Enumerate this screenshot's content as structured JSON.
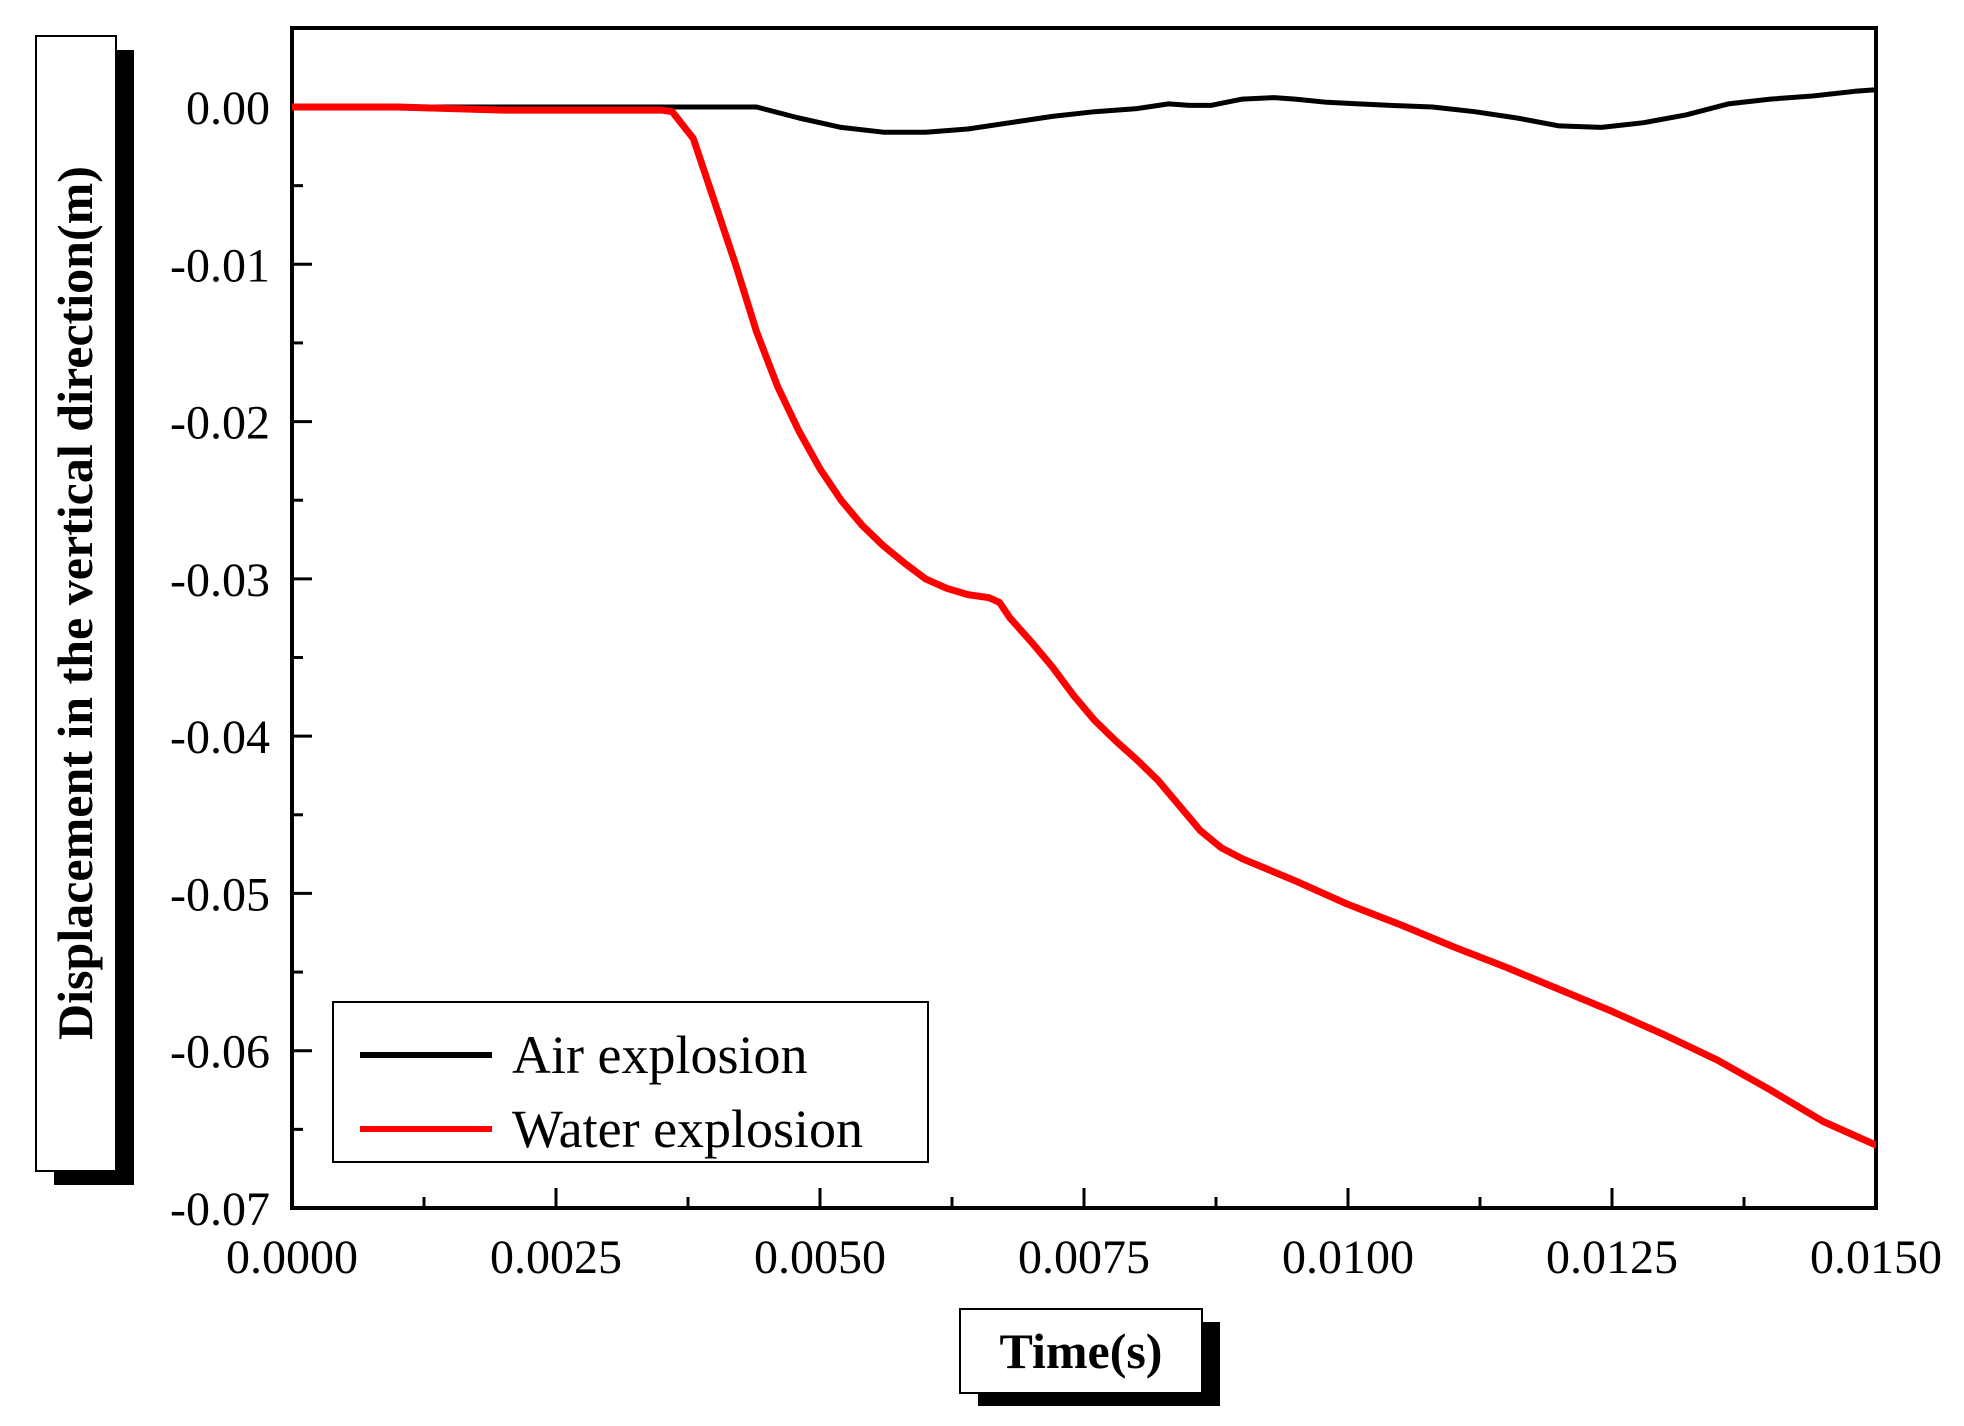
{
  "chart_data": {
    "type": "line",
    "title": "",
    "xlabel": "Time(s)",
    "ylabel": "Displacement in the vertical direction(m)",
    "xlim": [
      0.0,
      0.015
    ],
    "ylim": [
      -0.07,
      0.005
    ],
    "x_ticks": [
      0.0,
      0.0025,
      0.005,
      0.0075,
      0.01,
      0.0125,
      0.015
    ],
    "x_tick_labels": [
      "0.0000",
      "0.0025",
      "0.0050",
      "0.0075",
      "0.0100",
      "0.0125",
      "0.0150"
    ],
    "y_ticks": [
      0.0,
      -0.01,
      -0.02,
      -0.03,
      -0.04,
      -0.05,
      -0.06,
      -0.07
    ],
    "y_tick_labels": [
      "0.00",
      "-0.01",
      "-0.02",
      "-0.03",
      "-0.04",
      "-0.05",
      "-0.06",
      "-0.07"
    ],
    "grid": false,
    "legend_position": "bottom-left",
    "series": [
      {
        "name": "Air explosion",
        "color": "#000000",
        "x": [
          0.0,
          0.001,
          0.002,
          0.003,
          0.0035,
          0.0044,
          0.0048,
          0.0052,
          0.0056,
          0.006,
          0.0064,
          0.0068,
          0.0072,
          0.0076,
          0.008,
          0.0083,
          0.0085,
          0.0087,
          0.009,
          0.0093,
          0.0095,
          0.0098,
          0.0101,
          0.0104,
          0.0108,
          0.0112,
          0.0116,
          0.012,
          0.0124,
          0.0128,
          0.0132,
          0.0136,
          0.014,
          0.0144,
          0.0148,
          0.015
        ],
        "y": [
          0.0,
          0.0,
          0.0,
          0.0,
          0.0,
          0.0,
          -0.0007,
          -0.0013,
          -0.0016,
          -0.0016,
          -0.0014,
          -0.001,
          -0.0006,
          -0.0003,
          -0.0001,
          0.0002,
          0.0001,
          0.0001,
          0.0005,
          0.0006,
          0.0005,
          0.0003,
          0.0002,
          0.0001,
          0.0,
          -0.0003,
          -0.0007,
          -0.0012,
          -0.0013,
          -0.001,
          -0.0005,
          0.0002,
          0.0005,
          0.0007,
          0.001,
          0.0011
        ]
      },
      {
        "name": "Water explosion",
        "color": "#ff0000",
        "x": [
          0.0,
          0.001,
          0.002,
          0.003,
          0.0035,
          0.0036,
          0.0038,
          0.004,
          0.0042,
          0.0044,
          0.0046,
          0.0048,
          0.005,
          0.0052,
          0.0054,
          0.0056,
          0.0058,
          0.006,
          0.0062,
          0.0064,
          0.0066,
          0.0067,
          0.0068,
          0.007,
          0.0072,
          0.0074,
          0.0076,
          0.0078,
          0.008,
          0.0082,
          0.0084,
          0.0086,
          0.0088,
          0.009,
          0.0095,
          0.01,
          0.0105,
          0.011,
          0.0115,
          0.012,
          0.0125,
          0.013,
          0.0135,
          0.014,
          0.0145,
          0.015
        ],
        "y": [
          0.0,
          0.0,
          -0.0002,
          -0.0002,
          -0.0002,
          -0.0003,
          -0.002,
          -0.006,
          -0.01,
          -0.0143,
          -0.0178,
          -0.0206,
          -0.023,
          -0.025,
          -0.0266,
          -0.0279,
          -0.029,
          -0.03,
          -0.0306,
          -0.031,
          -0.0312,
          -0.0315,
          -0.0325,
          -0.034,
          -0.0356,
          -0.0374,
          -0.039,
          -0.0403,
          -0.0415,
          -0.0428,
          -0.0444,
          -0.046,
          -0.0471,
          -0.0478,
          -0.0492,
          -0.0507,
          -0.052,
          -0.0534,
          -0.0547,
          -0.0561,
          -0.0575,
          -0.059,
          -0.0606,
          -0.0625,
          -0.0645,
          -0.066
        ]
      }
    ]
  }
}
